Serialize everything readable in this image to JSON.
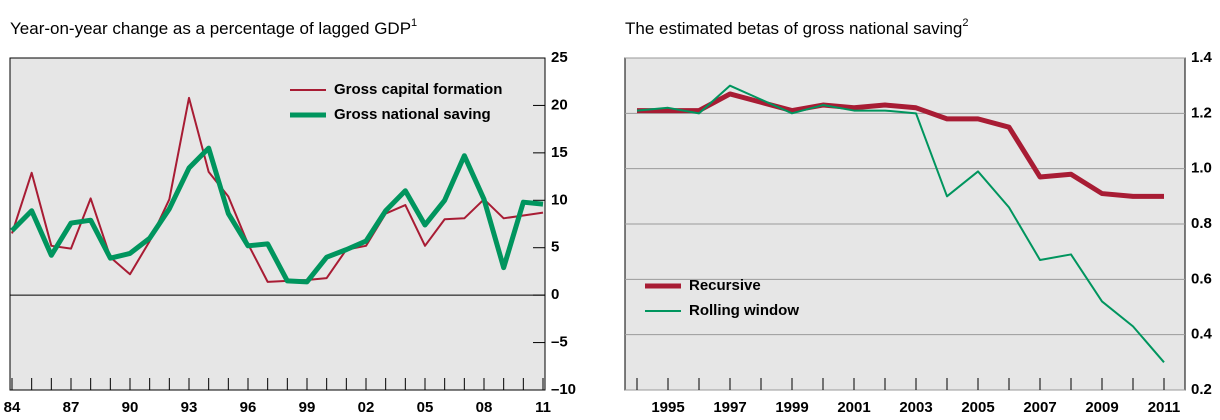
{
  "chart_data": [
    {
      "type": "line",
      "title": "Year-on-year change as a percentage of lagged GDP",
      "title_superscript": "1",
      "categories": [
        "84",
        null,
        null,
        "87",
        null,
        null,
        "90",
        null,
        null,
        "93",
        null,
        null,
        "96",
        null,
        null,
        "99",
        null,
        null,
        "02",
        null,
        null,
        "05",
        null,
        null,
        "08",
        null,
        null,
        "11"
      ],
      "series": [
        {
          "name": "Gross capital formation",
          "color": "#a81c34",
          "width": 2,
          "values": [
            6.5,
            12.9,
            5.2,
            4.9,
            10.2,
            4.0,
            2.2,
            5.7,
            10.1,
            20.8,
            13.0,
            10.4,
            5.4,
            1.4,
            1.5,
            1.6,
            1.8,
            4.8,
            5.2,
            8.6,
            9.5,
            5.2,
            8.0,
            8.1,
            10.1,
            8.1,
            8.4,
            8.7
          ]
        },
        {
          "name": "Gross national saving",
          "color": "#00955e",
          "width": 5,
          "values": [
            6.8,
            8.9,
            4.2,
            7.6,
            7.9,
            3.9,
            4.4,
            6.0,
            9.1,
            13.4,
            15.5,
            8.6,
            5.2,
            5.4,
            1.5,
            1.4,
            4.0,
            4.8,
            5.7,
            8.9,
            11.0,
            7.4,
            10.0,
            14.7,
            10.1,
            2.9,
            9.8,
            9.6
          ]
        }
      ],
      "ylim": [
        -10,
        25
      ],
      "yticks": [
        {
          "value": -10,
          "label": "–10"
        },
        {
          "value": -5,
          "label": "–5"
        },
        0,
        5,
        10,
        15,
        20,
        25
      ],
      "grid": false,
      "zero_line": true,
      "legend": "upper right"
    },
    {
      "type": "line",
      "title": "The estimated betas of gross national saving",
      "title_superscript": "2",
      "categories": [
        null,
        "1995",
        null,
        "1997",
        null,
        "1999",
        null,
        "2001",
        null,
        "2003",
        null,
        "2005",
        null,
        "2007",
        null,
        "2009",
        null,
        "2011"
      ],
      "series": [
        {
          "name": "Recursive",
          "color": "#a81c34",
          "width": 5,
          "values": [
            1.21,
            1.21,
            1.21,
            1.27,
            1.24,
            1.21,
            1.23,
            1.22,
            1.23,
            1.22,
            1.18,
            1.18,
            1.15,
            0.97,
            0.98,
            0.91,
            0.9,
            0.9
          ]
        },
        {
          "name": "Rolling window",
          "color": "#00955e",
          "width": 2,
          "values": [
            1.21,
            1.22,
            1.2,
            1.3,
            1.25,
            1.2,
            1.23,
            1.21,
            1.21,
            1.2,
            0.9,
            0.99,
            0.86,
            0.67,
            0.69,
            0.52,
            0.43,
            0.3
          ]
        }
      ],
      "ylim": [
        0.2,
        1.4
      ],
      "yticks": [
        0.2,
        0.4,
        0.6,
        0.8,
        {
          "value": 1.0,
          "label": "1.0"
        },
        1.2,
        1.4
      ],
      "grid": true,
      "zero_line": false,
      "legend": "center left"
    }
  ]
}
